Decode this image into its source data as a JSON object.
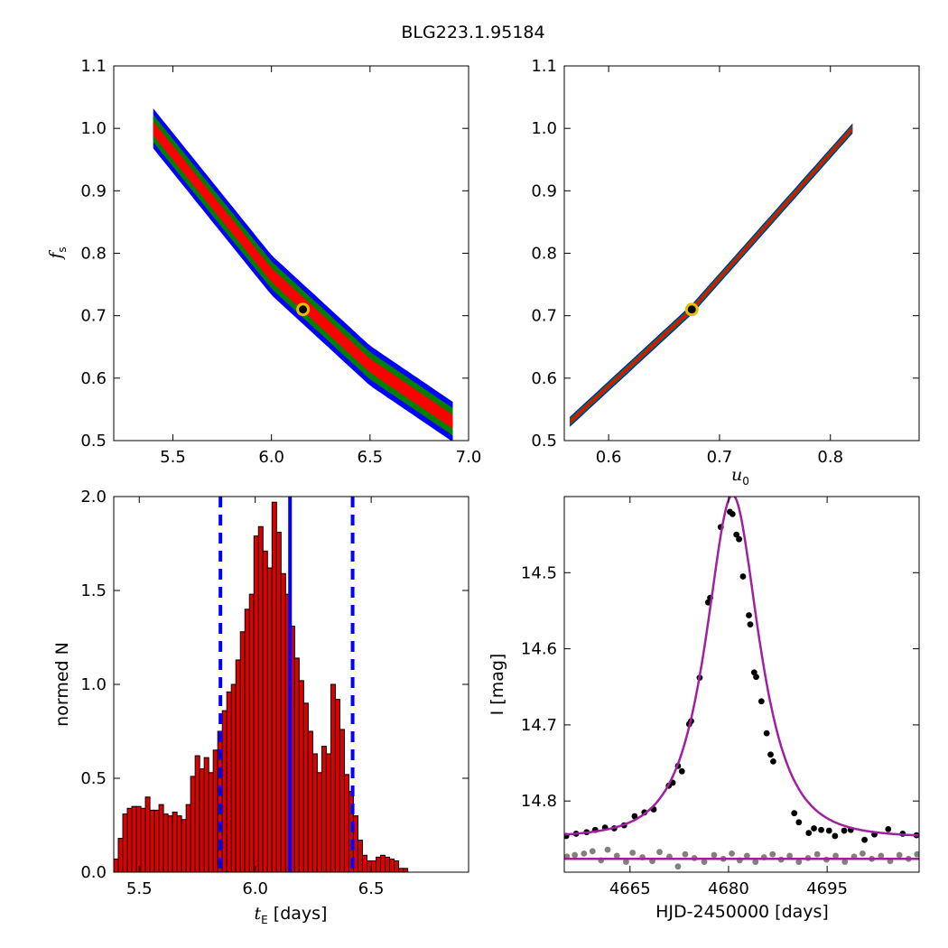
{
  "figure": {
    "title": "BLG223.1.95184"
  },
  "chart_data": [
    {
      "id": "tE_fs",
      "type": "heatmap",
      "xlabel": "",
      "ylabel": "f_s",
      "xlim": [
        5.2,
        7.0
      ],
      "ylim": [
        0.5,
        1.1
      ],
      "xticks": [
        5.5,
        6.0,
        6.5,
        7.0
      ],
      "xtick_labels": [
        "5.5",
        "6.0",
        "6.5",
        "7.0"
      ],
      "yticks": [
        0.5,
        0.6,
        0.7,
        0.8,
        0.9,
        1.0,
        1.1
      ],
      "ytick_labels": [
        "0.5",
        "0.6",
        "0.7",
        "0.8",
        "0.9",
        "1.0",
        "1.1"
      ],
      "ridge": [
        [
          5.4,
          1.0
        ],
        [
          6.0,
          0.765
        ],
        [
          6.5,
          0.62
        ],
        [
          6.92,
          0.53
        ]
      ],
      "band_halfwidth": {
        "blue": 0.032,
        "green": 0.022,
        "red": 0.011
      },
      "best_fit": [
        6.16,
        0.71
      ],
      "colors": {
        "blue": "#0000ff",
        "green": "#008000",
        "red": "#ff0000",
        "best": "#e5c000"
      }
    },
    {
      "id": "u0_fs",
      "type": "heatmap",
      "xlabel": "u_0",
      "ylabel": "",
      "xlim": [
        0.56,
        0.88
      ],
      "ylim": [
        0.5,
        1.1
      ],
      "xticks": [
        0.6,
        0.7,
        0.8
      ],
      "xtick_labels": [
        "0.6",
        "0.7",
        "0.8"
      ],
      "yticks": [
        0.5,
        0.6,
        0.7,
        0.8,
        0.9,
        1.0,
        1.1
      ],
      "ytick_labels": [
        "0.5",
        "0.6",
        "0.7",
        "0.8",
        "0.9",
        "1.0",
        "1.1"
      ],
      "ridge": [
        [
          0.565,
          0.53
        ],
        [
          0.675,
          0.71
        ],
        [
          0.82,
          1.0
        ]
      ],
      "band_halfwidth": {
        "blue": 0.008,
        "green": 0.006,
        "red": 0.003
      },
      "best_fit": [
        0.675,
        0.71
      ],
      "colors": {
        "blue": "#0000ff",
        "green": "#008000",
        "red": "#ff0000",
        "best": "#e5c000"
      }
    },
    {
      "id": "tE_hist",
      "type": "bar",
      "xlabel": "t_E [days]",
      "ylabel": "normed N",
      "xlim": [
        5.39,
        6.92
      ],
      "ylim": [
        0.0,
        2.0
      ],
      "xticks": [
        5.5,
        6.0,
        6.5
      ],
      "xtick_labels": [
        "5.5",
        "6.0",
        "6.5"
      ],
      "yticks": [
        0.0,
        0.5,
        1.0,
        1.5,
        2.0
      ],
      "ytick_labels": [
        "0.0",
        "0.5",
        "1.0",
        "1.5",
        "2.0"
      ],
      "bin_start": 5.39,
      "bin_width": 0.0195,
      "values": [
        0.07,
        0.18,
        0.31,
        0.34,
        0.35,
        0.35,
        0.34,
        0.4,
        0.33,
        0.33,
        0.36,
        0.31,
        0.3,
        0.32,
        0.3,
        0.28,
        0.36,
        0.51,
        0.62,
        0.55,
        0.61,
        0.53,
        0.65,
        0.75,
        0.86,
        0.96,
        1.0,
        1.13,
        1.28,
        1.4,
        1.48,
        1.79,
        1.84,
        1.71,
        1.62,
        1.97,
        1.81,
        1.59,
        1.48,
        1.31,
        1.14,
        1.02,
        0.9,
        0.75,
        0.63,
        0.53,
        0.67,
        0.63,
        1.0,
        0.92,
        0.76,
        0.52,
        0.43,
        0.3,
        0.17,
        0.09,
        0.06,
        0.06,
        0.08,
        0.09,
        0.08,
        0.07,
        0.06,
        0.02,
        0.02
      ],
      "bar_color": "#dd0000",
      "median": 6.15,
      "bounds": [
        5.85,
        6.42
      ],
      "line_color": "#0000ff"
    },
    {
      "id": "lightcurve",
      "type": "scatter",
      "xlabel": "HJD-2450000 [days]",
      "ylabel": "I [mag]",
      "xlim": [
        4655.0,
        4709.0
      ],
      "ylim": [
        14.8935,
        14.4
      ],
      "xticks": [
        4665,
        4680,
        4695
      ],
      "xtick_labels": [
        "4665",
        "4680",
        "4695"
      ],
      "yticks": [
        14.5,
        14.6,
        14.7,
        14.8
      ],
      "ytick_labels": [
        "14.5",
        "14.6",
        "14.7",
        "14.8"
      ],
      "model": {
        "t0": 4680.6,
        "tE": 6.15,
        "u0": 0.675,
        "fs": 0.71,
        "base": 14.848,
        "color": "#a020a0"
      },
      "baseline": {
        "value": 14.876,
        "color": "#a020a0"
      },
      "series": [
        {
          "color": "#000000",
          "points": [
            [
              4655.3,
              14.846
            ],
            [
              4656.8,
              14.843
            ],
            [
              4658.4,
              14.841
            ],
            [
              4659.7,
              14.838
            ],
            [
              4661.2,
              14.835
            ],
            [
              4662.6,
              14.836
            ],
            [
              4664.1,
              14.832
            ],
            [
              4665.7,
              14.82
            ],
            [
              4667.2,
              14.815
            ],
            [
              4668.6,
              14.811
            ],
            [
              4670.9,
              14.78
            ],
            [
              4671.5,
              14.776
            ],
            [
              4672.3,
              14.754
            ],
            [
              4672.9,
              14.761
            ],
            [
              4674.0,
              14.699
            ],
            [
              4674.3,
              14.695
            ],
            [
              4675.6,
              14.638
            ],
            [
              4676.9,
              14.539
            ],
            [
              4677.2,
              14.533
            ],
            [
              4678.8,
              14.44
            ],
            [
              4680.2,
              14.42
            ],
            [
              4680.6,
              14.423
            ],
            [
              4681.2,
              14.45
            ],
            [
              4681.6,
              14.456
            ],
            [
              4682.2,
              14.505
            ],
            [
              4683.1,
              14.556
            ],
            [
              4683.3,
              14.568
            ],
            [
              4683.9,
              14.631
            ],
            [
              4684.2,
              14.637
            ],
            [
              4685.0,
              14.669
            ],
            [
              4685.8,
              14.711
            ],
            [
              4686.4,
              14.739
            ],
            [
              4686.8,
              14.748
            ],
            [
              4690.0,
              14.816
            ],
            [
              4690.7,
              14.828
            ],
            [
              4692.2,
              14.842
            ],
            [
              4693.0,
              14.836
            ],
            [
              4694.1,
              14.838
            ],
            [
              4695.3,
              14.839
            ],
            [
              4696.2,
              14.846
            ],
            [
              4697.6,
              14.839
            ],
            [
              4698.6,
              14.838
            ],
            [
              4700.7,
              14.851
            ],
            [
              4702.2,
              14.844
            ],
            [
              4704.3,
              14.837
            ],
            [
              4706.5,
              14.843
            ],
            [
              4708.6,
              14.845
            ]
          ]
        },
        {
          "color": "#808080",
          "points": [
            [
              4655.4,
              14.873
            ],
            [
              4656.6,
              14.871
            ],
            [
              4658.0,
              14.869
            ],
            [
              4659.3,
              14.866
            ],
            [
              4660.6,
              14.878
            ],
            [
              4661.6,
              14.864
            ],
            [
              4663.0,
              14.872
            ],
            [
              4664.4,
              14.88
            ],
            [
              4665.4,
              14.868
            ],
            [
              4666.9,
              14.874
            ],
            [
              4668.4,
              14.879
            ],
            [
              4669.5,
              14.867
            ],
            [
              4671.0,
              14.873
            ],
            [
              4672.3,
              14.886
            ],
            [
              4673.4,
              14.87
            ],
            [
              4674.8,
              14.875
            ],
            [
              4676.3,
              14.88
            ],
            [
              4677.8,
              14.871
            ],
            [
              4679.2,
              14.876
            ],
            [
              4680.5,
              14.869
            ],
            [
              4681.7,
              14.878
            ],
            [
              4682.8,
              14.872
            ],
            [
              4684.1,
              14.88
            ],
            [
              4685.4,
              14.874
            ],
            [
              4686.7,
              14.87
            ],
            [
              4688.0,
              14.877
            ],
            [
              4689.3,
              14.872
            ],
            [
              4690.7,
              14.88
            ],
            [
              4692.1,
              14.875
            ],
            [
              4693.5,
              14.87
            ],
            [
              4694.9,
              14.877
            ],
            [
              4696.3,
              14.872
            ],
            [
              4697.7,
              14.88
            ],
            [
              4699.1,
              14.873
            ],
            [
              4700.4,
              14.869
            ],
            [
              4701.8,
              14.876
            ],
            [
              4703.2,
              14.872
            ],
            [
              4704.6,
              14.879
            ],
            [
              4706.0,
              14.871
            ],
            [
              4707.4,
              14.876
            ],
            [
              4708.7,
              14.87
            ]
          ]
        }
      ]
    }
  ]
}
